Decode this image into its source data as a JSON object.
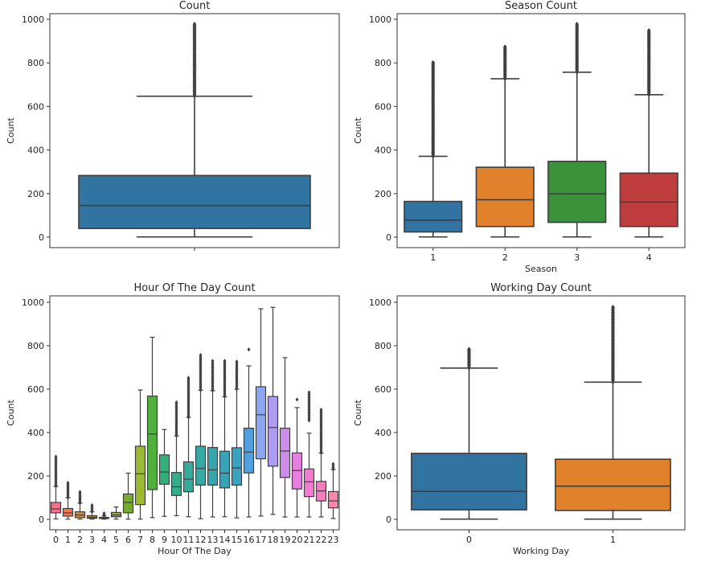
{
  "chart_data": [
    {
      "type": "box",
      "title": "Count",
      "xlabel": "",
      "ylabel": "Count",
      "ylim": [
        -50,
        1030
      ],
      "yticks": [
        0,
        200,
        400,
        600,
        800,
        1000
      ],
      "categories": [
        ""
      ],
      "boxes": [
        {
          "category": "",
          "color": "#3274a1",
          "whislo": 1,
          "q1": 40,
          "med": 145,
          "q3": 283,
          "whishi": 647,
          "outlier_min": 648,
          "outlier_max": 977
        }
      ]
    },
    {
      "type": "box",
      "title": "Season Count",
      "xlabel": "Season",
      "ylabel": "Count",
      "ylim": [
        -50,
        1030
      ],
      "yticks": [
        0,
        200,
        400,
        600,
        800,
        1000
      ],
      "categories": [
        "1",
        "2",
        "3",
        "4"
      ],
      "boxes": [
        {
          "category": "1",
          "color": "#3274a1",
          "whislo": 1,
          "q1": 24,
          "med": 78,
          "q3": 164,
          "whishi": 371,
          "outlier_min": 372,
          "outlier_max": 801
        },
        {
          "category": "2",
          "color": "#e1812c",
          "whislo": 1,
          "q1": 49,
          "med": 172,
          "q3": 321,
          "whishi": 727,
          "outlier_min": 728,
          "outlier_max": 873
        },
        {
          "category": "3",
          "color": "#3a923a",
          "whislo": 1,
          "q1": 68,
          "med": 199,
          "q3": 348,
          "whishi": 757,
          "outlier_min": 758,
          "outlier_max": 977
        },
        {
          "category": "4",
          "color": "#c03d3e",
          "whislo": 1,
          "q1": 49,
          "med": 161,
          "q3": 294,
          "whishi": 654,
          "outlier_min": 655,
          "outlier_max": 948
        }
      ]
    },
    {
      "type": "box",
      "title": "Hour Of The Day Count",
      "xlabel": "Hour Of The Day",
      "ylabel": "Count",
      "ylim": [
        -50,
        1030
      ],
      "yticks": [
        0,
        200,
        400,
        600,
        800,
        1000
      ],
      "categories": [
        "0",
        "1",
        "2",
        "3",
        "4",
        "5",
        "6",
        "7",
        "8",
        "9",
        "10",
        "11",
        "12",
        "13",
        "14",
        "15",
        "16",
        "17",
        "18",
        "19",
        "20",
        "21",
        "22",
        "23"
      ],
      "boxes": [
        {
          "category": "0",
          "color": "#f77189",
          "whislo": 2,
          "q1": 30,
          "med": 48,
          "q3": 78,
          "whishi": 152,
          "outlier_min": 153,
          "outlier_max": 289
        },
        {
          "category": "1",
          "color": "#f7754f",
          "whislo": 1,
          "q1": 15,
          "med": 30,
          "q3": 50,
          "whishi": 100,
          "outlier_min": 101,
          "outlier_max": 168
        },
        {
          "category": "2",
          "color": "#dc8932",
          "whislo": 1,
          "q1": 8,
          "med": 20,
          "q3": 35,
          "whishi": 75,
          "outlier_min": 76,
          "outlier_max": 126
        },
        {
          "category": "3",
          "color": "#c39532",
          "whislo": 1,
          "q1": 5,
          "med": 10,
          "q3": 17,
          "whishi": 35,
          "outlier_min": 36,
          "outlier_max": 65
        },
        {
          "category": "4",
          "color": "#ae9d31",
          "whislo": 1,
          "q1": 4,
          "med": 6,
          "q3": 9,
          "whishi": 16,
          "outlier_min": 17,
          "outlier_max": 28
        },
        {
          "category": "5",
          "color": "#97a431",
          "whislo": 1,
          "q1": 12,
          "med": 20,
          "q3": 32,
          "whishi": 57,
          "outlier_min": null,
          "outlier_max": null
        },
        {
          "category": "6",
          "color": "#77ab31",
          "whislo": 1,
          "q1": 30,
          "med": 78,
          "q3": 117,
          "whishi": 213,
          "outlier_min": null,
          "outlier_max": null
        },
        {
          "category": "7",
          "color": "#9bb931",
          "whislo": 1,
          "q1": 68,
          "med": 210,
          "q3": 337,
          "whishi": 596,
          "outlier_min": null,
          "outlier_max": null
        },
        {
          "category": "8",
          "color": "#4fb03a",
          "whislo": 8,
          "q1": 137,
          "med": 393,
          "q3": 568,
          "whishi": 839,
          "outlier_min": null,
          "outlier_max": null
        },
        {
          "category": "9",
          "color": "#33b07a",
          "whislo": 14,
          "q1": 162,
          "med": 218,
          "q3": 297,
          "whishi": 414,
          "outlier_min": null,
          "outlier_max": null
        },
        {
          "category": "10",
          "color": "#35ad8b",
          "whislo": 17,
          "q1": 110,
          "med": 150,
          "q3": 216,
          "whishi": 385,
          "outlier_min": 386,
          "outlier_max": 539
        },
        {
          "category": "11",
          "color": "#36ab99",
          "whislo": 12,
          "q1": 127,
          "med": 185,
          "q3": 265,
          "whishi": 470,
          "outlier_min": 471,
          "outlier_max": 652
        },
        {
          "category": "12",
          "color": "#37a9a4",
          "whislo": 3,
          "q1": 158,
          "med": 235,
          "q3": 337,
          "whishi": 595,
          "outlier_min": 596,
          "outlier_max": 757
        },
        {
          "category": "13",
          "color": "#38a7ad",
          "whislo": 11,
          "q1": 158,
          "med": 228,
          "q3": 331,
          "whishi": 593,
          "outlier_min": 594,
          "outlier_max": 730
        },
        {
          "category": "14",
          "color": "#39a4b7",
          "whislo": 12,
          "q1": 145,
          "med": 213,
          "q3": 314,
          "whishi": 565,
          "outlier_min": 566,
          "outlier_max": 730
        },
        {
          "category": "15",
          "color": "#3ba3c2",
          "whislo": 7,
          "q1": 158,
          "med": 237,
          "q3": 330,
          "whishi": 600,
          "outlier_min": 601,
          "outlier_max": 727
        },
        {
          "category": "16",
          "color": "#50a0e0",
          "whislo": 11,
          "q1": 214,
          "med": 310,
          "q3": 420,
          "whishi": 707,
          "outlier_min": 783,
          "outlier_max": 783
        },
        {
          "category": "17",
          "color": "#8da6f2",
          "whislo": 15,
          "q1": 279,
          "med": 482,
          "q3": 611,
          "whishi": 970,
          "outlier_min": null,
          "outlier_max": null
        },
        {
          "category": "18",
          "color": "#b09bf2",
          "whislo": 23,
          "q1": 245,
          "med": 423,
          "q3": 566,
          "whishi": 977,
          "outlier_min": null,
          "outlier_max": null
        },
        {
          "category": "19",
          "color": "#cc8ee9",
          "whislo": 11,
          "q1": 193,
          "med": 315,
          "q3": 420,
          "whishi": 745,
          "outlier_min": null,
          "outlier_max": null
        },
        {
          "category": "20",
          "color": "#e67fe0",
          "whislo": 11,
          "q1": 140,
          "med": 225,
          "q3": 306,
          "whishi": 515,
          "outlier_min": 552,
          "outlier_max": 552
        },
        {
          "category": "21",
          "color": "#f17cd0",
          "whislo": 11,
          "q1": 105,
          "med": 173,
          "q3": 232,
          "whishi": 397,
          "outlier_min": 456,
          "outlier_max": 585
        },
        {
          "category": "22",
          "color": "#f37dbd",
          "whislo": 11,
          "q1": 85,
          "med": 131,
          "q3": 175,
          "whishi": 305,
          "outlier_min": 306,
          "outlier_max": 505
        },
        {
          "category": "23",
          "color": "#f587a8",
          "whislo": 4,
          "q1": 53,
          "med": 85,
          "q3": 128,
          "whishi": 230,
          "outlier_min": 231,
          "outlier_max": 255
        }
      ]
    },
    {
      "type": "box",
      "title": "Working Day Count",
      "xlabel": "Working Day",
      "ylabel": "Count",
      "ylim": [
        -50,
        1030
      ],
      "yticks": [
        0,
        200,
        400,
        600,
        800,
        1000
      ],
      "categories": [
        "0",
        "1"
      ],
      "boxes": [
        {
          "category": "0",
          "color": "#3274a1",
          "whislo": 1,
          "q1": 44,
          "med": 129,
          "q3": 304,
          "whishi": 697,
          "outlier_min": 698,
          "outlier_max": 783
        },
        {
          "category": "1",
          "color": "#e1812c",
          "whislo": 1,
          "q1": 41,
          "med": 153,
          "q3": 277,
          "whishi": 632,
          "outlier_min": 633,
          "outlier_max": 977
        }
      ]
    }
  ]
}
